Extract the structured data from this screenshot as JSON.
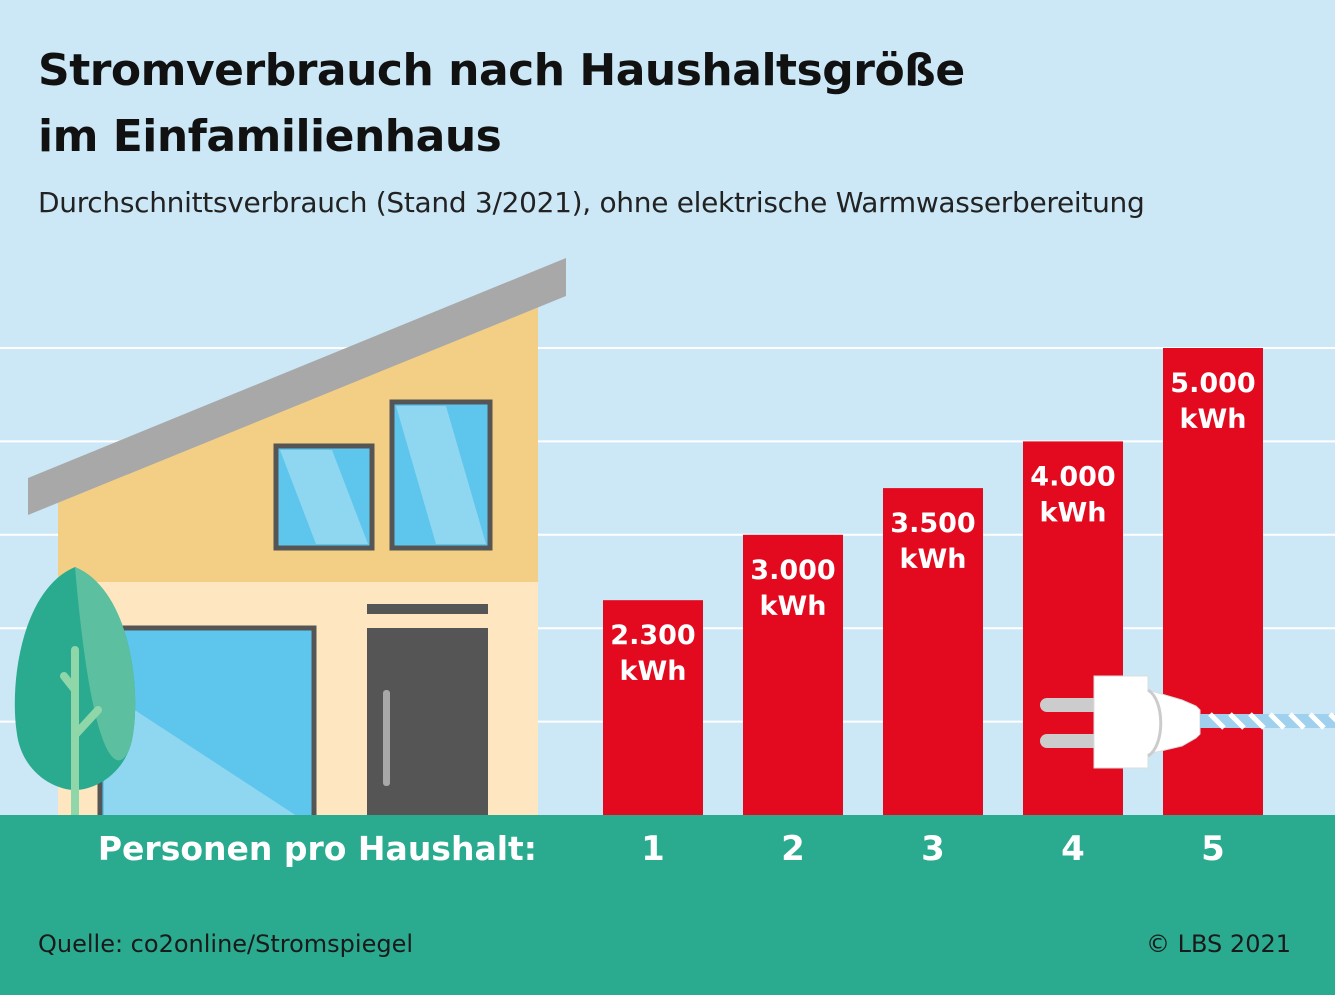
{
  "header": {
    "title_line1": "Stromverbrauch nach Haushaltsgröße",
    "title_line2": "im Einfamilienhaus",
    "subtitle": "Durchschnittsverbrauch (Stand 3/2021), ohne elektrische Warmwasserbereitung"
  },
  "footer": {
    "source": "Quelle: co2online/Stromspiegel",
    "copyright": "© LBS 2021"
  },
  "colors": {
    "background": "#cce8f7",
    "bar": "#e30a1f",
    "ground": "#2aaa8f",
    "gridline": "#ffffff"
  },
  "chart_data": {
    "type": "bar",
    "xlabel": "Personen pro Haushalt:",
    "categories": [
      "1",
      "2",
      "3",
      "4",
      "5"
    ],
    "values": [
      2300,
      3000,
      3500,
      4000,
      5000
    ],
    "value_labels": [
      "2.300",
      "3.000",
      "3.500",
      "4.000",
      "5.000"
    ],
    "unit": "kWh",
    "ylim": [
      0,
      5000
    ],
    "grid": true
  }
}
